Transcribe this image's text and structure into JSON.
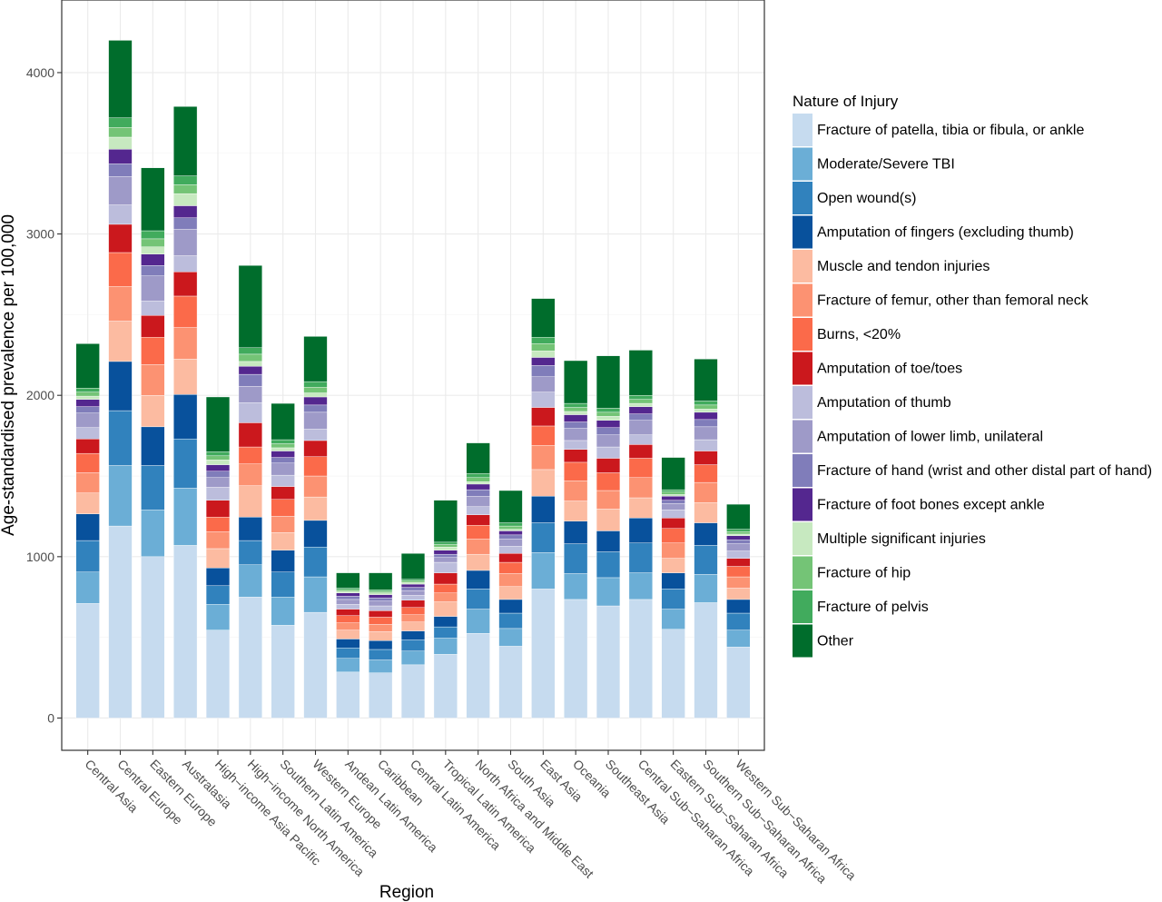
{
  "chart_data": {
    "type": "bar",
    "stacked": true,
    "xlabel": "Region",
    "ylabel": "Age-standardised prevalence per 100,000",
    "ylim": [
      -200,
      4450
    ],
    "yticks": [
      0,
      1000,
      2000,
      3000,
      4000
    ],
    "grid": true,
    "legend_position": "right",
    "legend_title": "Nature of Injury",
    "categories": [
      "Central Asia",
      "Central Europe",
      "Eastern Europe",
      "Australasia",
      "High−income Asia Pacific",
      "High−income North America",
      "Southern Latin America",
      "Western Europe",
      "Andean Latin America",
      "Caribbean",
      "Central Latin America",
      "Tropical Latin America",
      "North Africa and Middle East",
      "South Asia",
      "East Asia",
      "Oceania",
      "Southeast Asia",
      "Central Sub−Saharan Africa",
      "Eastern Sub−Saharan Africa",
      "Southern Sub−Saharan Africa",
      "Western Sub−Saharan Africa"
    ],
    "series": [
      {
        "name": "Fracture of patella, tibia or fibula, or ankle",
        "color": "#c6dbef",
        "values": [
          710,
          1190,
          1000,
          1070,
          545,
          750,
          575,
          655,
          285,
          280,
          330,
          395,
          525,
          445,
          800,
          735,
          695,
          735,
          550,
          715,
          440
        ]
      },
      {
        "name": "Moderate/Severe TBI",
        "color": "#6baed6",
        "values": [
          195,
          375,
          290,
          355,
          160,
          200,
          175,
          220,
          85,
          80,
          85,
          100,
          150,
          110,
          225,
          160,
          175,
          165,
          125,
          175,
          105
        ]
      },
      {
        "name": "Open wound(s)",
        "color": "#3182bd",
        "values": [
          195,
          340,
          275,
          305,
          115,
          150,
          155,
          185,
          65,
          65,
          70,
          70,
          125,
          95,
          185,
          185,
          160,
          185,
          125,
          180,
          105
        ]
      },
      {
        "name": "Amputation of fingers (excluding thumb)",
        "color": "#08519c",
        "values": [
          165,
          305,
          240,
          275,
          110,
          145,
          135,
          165,
          55,
          55,
          55,
          65,
          115,
          85,
          165,
          140,
          130,
          155,
          100,
          140,
          85
        ]
      },
      {
        "name": "Muscle and tendon injuries",
        "color": "#fcbba1",
        "values": [
          130,
          250,
          195,
          220,
          120,
          195,
          110,
          145,
          55,
          55,
          55,
          90,
          100,
          80,
          165,
          125,
          135,
          125,
          90,
          125,
          70
        ]
      },
      {
        "name": "Fracture of femur, other than femoral neck",
        "color": "#fc9272",
        "values": [
          125,
          215,
          190,
          195,
          105,
          135,
          100,
          130,
          45,
          45,
          45,
          55,
          95,
          80,
          150,
          125,
          115,
          125,
          95,
          125,
          70
        ]
      },
      {
        "name": "Burns, <20%",
        "color": "#fb6a4a",
        "values": [
          120,
          210,
          170,
          195,
          90,
          105,
          105,
          120,
          45,
          45,
          45,
          55,
          85,
          70,
          120,
          115,
          110,
          120,
          90,
          110,
          65
        ]
      },
      {
        "name": "Amputation of toe/toes",
        "color": "#cb181d",
        "values": [
          90,
          175,
          135,
          150,
          105,
          150,
          80,
          100,
          40,
          40,
          45,
          70,
          65,
          55,
          115,
          80,
          90,
          85,
          65,
          85,
          50
        ]
      },
      {
        "name": "Amputation of thumb",
        "color": "#bcbddc",
        "values": [
          70,
          120,
          90,
          100,
          80,
          125,
          70,
          70,
          30,
          30,
          30,
          65,
          50,
          45,
          95,
          55,
          70,
          60,
          50,
          70,
          45
        ]
      },
      {
        "name": "Amputation of lower limb, unilateral",
        "color": "#9e9ac8",
        "values": [
          90,
          175,
          155,
          165,
          60,
          100,
          75,
          105,
          30,
          30,
          30,
          30,
          65,
          45,
          95,
          75,
          75,
          90,
          40,
          80,
          45
        ]
      },
      {
        "name": "Fracture of hand (wrist and other distal part of hand)",
        "color": "#807dba",
        "values": [
          40,
          80,
          65,
          70,
          40,
          75,
          35,
          45,
          20,
          20,
          20,
          20,
          40,
          25,
          70,
          40,
          45,
          40,
          20,
          45,
          25
        ]
      },
      {
        "name": "Fracture of foot bones except ankle",
        "color": "#54278f",
        "values": [
          45,
          90,
          70,
          75,
          40,
          50,
          40,
          50,
          20,
          20,
          20,
          25,
          35,
          25,
          50,
          45,
          45,
          45,
          25,
          45,
          25
        ]
      },
      {
        "name": "Multiple significant injuries",
        "color": "#c7e9c0",
        "values": [
          20,
          75,
          45,
          75,
          30,
          30,
          20,
          25,
          10,
          10,
          10,
          20,
          15,
          10,
          40,
          20,
          25,
          20,
          10,
          20,
          10
        ]
      },
      {
        "name": "Fracture of hip",
        "color": "#74c476",
        "values": [
          25,
          60,
          50,
          55,
          25,
          45,
          25,
          35,
          10,
          10,
          10,
          15,
          25,
          20,
          45,
          25,
          25,
          25,
          15,
          25,
          15
        ]
      },
      {
        "name": "Fracture of pelvis",
        "color": "#41ab5d",
        "values": [
          25,
          60,
          50,
          55,
          25,
          40,
          25,
          35,
          10,
          10,
          10,
          15,
          25,
          20,
          40,
          25,
          25,
          25,
          15,
          25,
          15
        ]
      },
      {
        "name": "Other",
        "color": "#006d2c",
        "values": [
          275,
          480,
          390,
          430,
          340,
          510,
          225,
          280,
          95,
          105,
          160,
          260,
          190,
          200,
          240,
          265,
          325,
          280,
          200,
          260,
          155
        ]
      }
    ]
  }
}
